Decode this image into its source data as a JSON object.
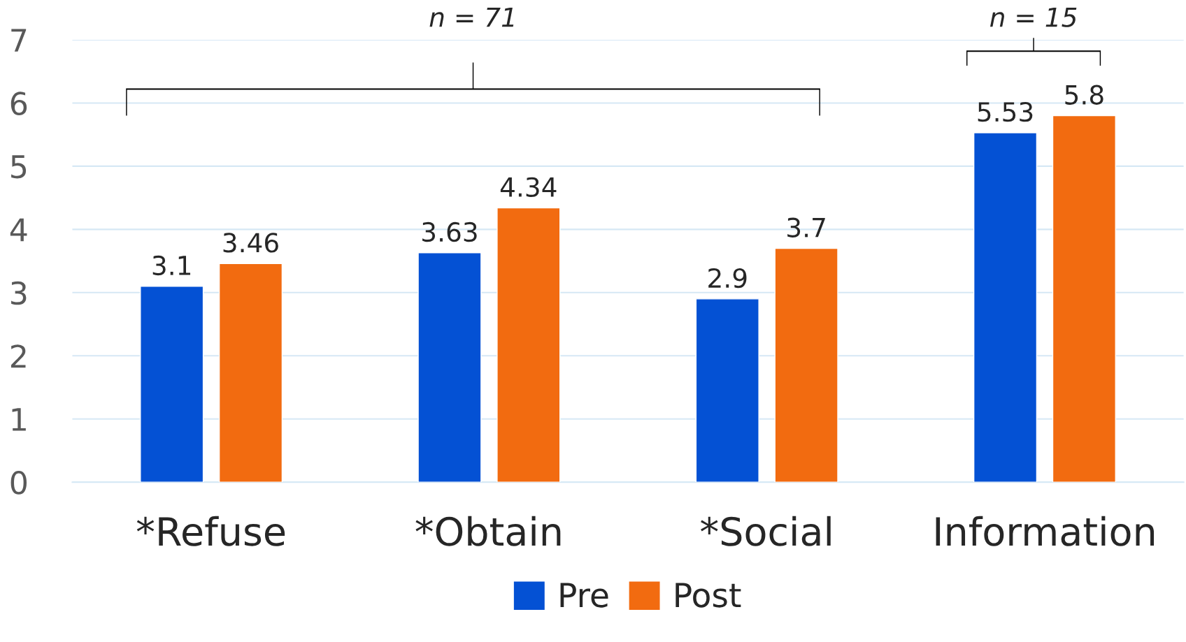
{
  "chart_data": {
    "type": "bar",
    "categories": [
      "*Refuse",
      "*Obtain",
      "*Social",
      "Information"
    ],
    "series": [
      {
        "name": "Pre",
        "color": "#0451d4",
        "values": [
          3.1,
          3.63,
          2.9,
          5.53
        ]
      },
      {
        "name": "Post",
        "color": "#f26b10",
        "values": [
          3.46,
          4.34,
          3.7,
          5.8
        ]
      }
    ],
    "ylim": [
      0,
      7
    ],
    "yticks": [
      0,
      1,
      2,
      3,
      4,
      5,
      6,
      7
    ],
    "grid": "y",
    "legend": "bottom",
    "data_labels": true,
    "annotations": [
      "n = 71",
      "n = 15"
    ]
  }
}
